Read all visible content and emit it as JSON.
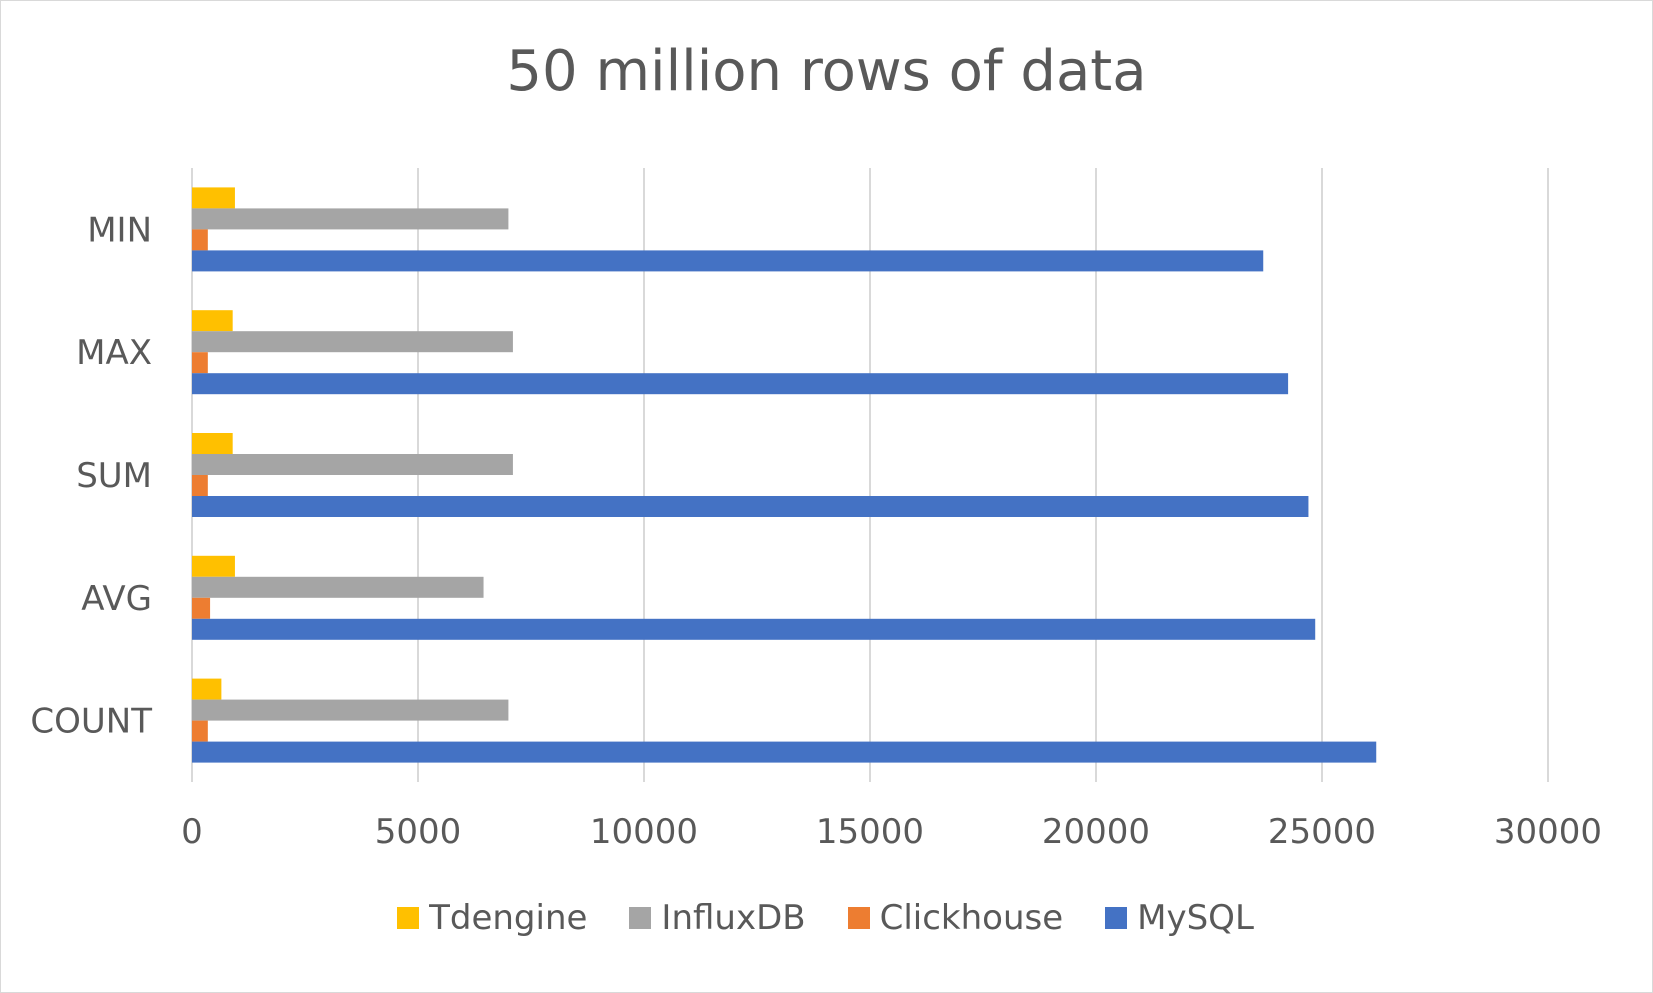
{
  "chart_data": {
    "type": "bar",
    "orientation": "horizontal",
    "title": "50 million rows of data",
    "categories": [
      "MIN",
      "MAX",
      "SUM",
      "AVG",
      "COUNT"
    ],
    "series": [
      {
        "name": "Tdengine",
        "color": "#FFC000",
        "values": [
          950,
          900,
          900,
          950,
          650
        ]
      },
      {
        "name": "InfluxDB",
        "color": "#A5A5A5",
        "values": [
          7000,
          7100,
          7100,
          6450,
          7000
        ]
      },
      {
        "name": "Clickhouse",
        "color": "#ED7D31",
        "values": [
          350,
          350,
          350,
          400,
          350
        ]
      },
      {
        "name": "MySQL",
        "color": "#4472C4",
        "values": [
          23700,
          24250,
          24700,
          24850,
          26200
        ]
      }
    ],
    "xlim": [
      0,
      30000
    ],
    "x_ticks": [
      0,
      5000,
      10000,
      15000,
      20000,
      25000,
      30000
    ],
    "x_tick_labels": [
      "0",
      "5000",
      "10000",
      "15000",
      "20000",
      "25000",
      "30000"
    ],
    "grid": "vertical",
    "legend_position": "bottom"
  }
}
